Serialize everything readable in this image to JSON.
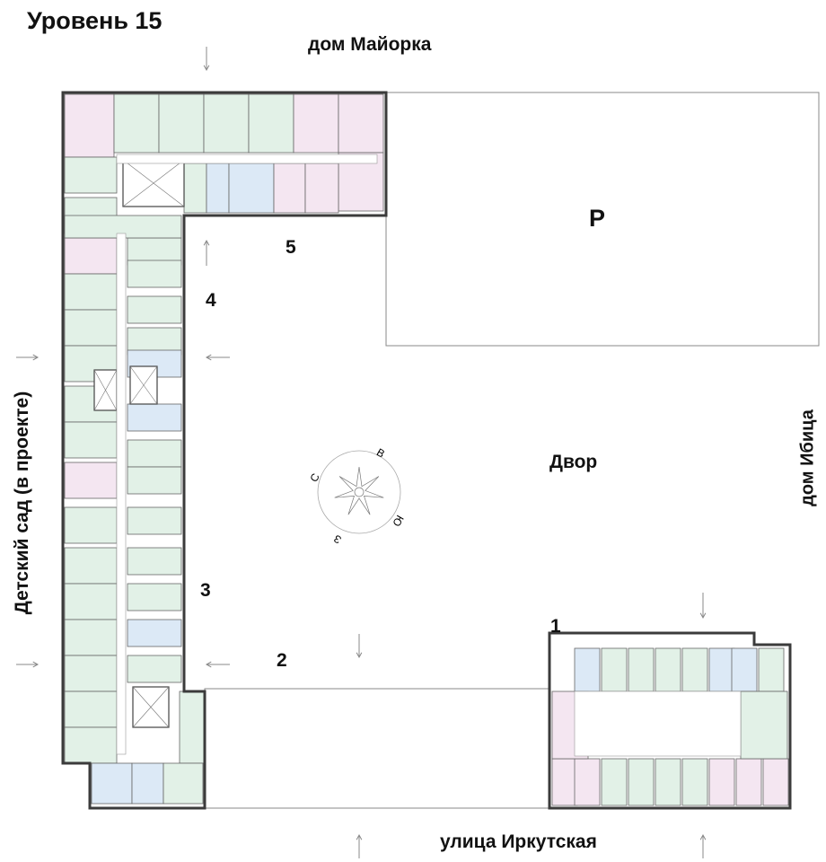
{
  "title": "Уровень 15",
  "neighbors": {
    "north": "дом Майорка",
    "east": "дом Ибица",
    "south": "улица Иркутская",
    "west": "Детский сад (в проекте)"
  },
  "yard_label": "Двор",
  "parking_label": "P",
  "sections": [
    "1",
    "2",
    "3",
    "4",
    "5"
  ],
  "compass": {
    "n": "С",
    "e": "В",
    "s": "Ю",
    "w": "З"
  },
  "colors": {
    "unit_green": "#e2f1e7",
    "unit_pink": "#f4e6f1",
    "unit_blue": "#dce9f6",
    "wall": "#3b3b3b",
    "outline": "#8a8a8a"
  }
}
